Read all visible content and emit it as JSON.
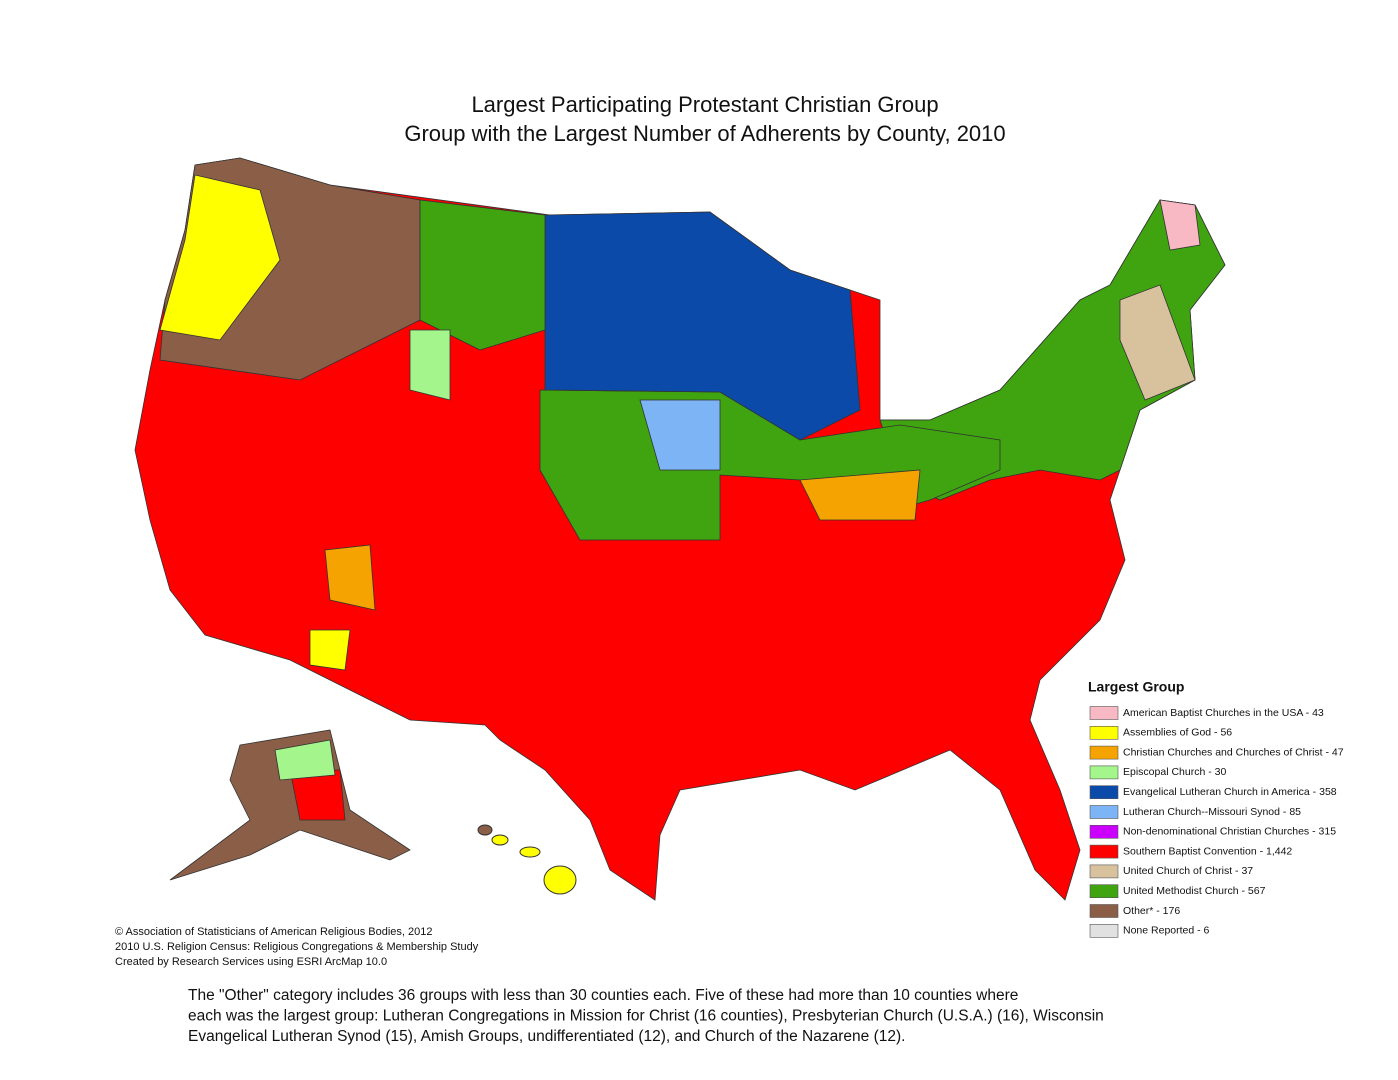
{
  "header": {
    "title": "Largest Participating Protestant Christian Group",
    "subtitle": "Group with the Largest Number of Adherents by County, 2010"
  },
  "legend": {
    "title": "Largest Group",
    "items": [
      {
        "label": "American Baptist Churches in the USA - 43",
        "color": "#f9b9c4"
      },
      {
        "label": "Assemblies of God - 56",
        "color": "#ffff00"
      },
      {
        "label": "Christian Churches and Churches of Christ - 47",
        "color": "#f5a300"
      },
      {
        "label": "Episcopal Church - 30",
        "color": "#a4f58c"
      },
      {
        "label": "Evangelical Lutheran Church in America - 358",
        "color": "#0b4aa8"
      },
      {
        "label": "Lutheran Church--Missouri Synod - 85",
        "color": "#7db4f5"
      },
      {
        "label": "Non-denominational Christian Churches - 315",
        "color": "#cc00ff"
      },
      {
        "label": "Southern Baptist Convention - 1,442",
        "color": "#ff0000"
      },
      {
        "label": "United Church of Christ - 37",
        "color": "#d8c29d"
      },
      {
        "label": "United Methodist Church - 567",
        "color": "#3fa40f"
      },
      {
        "label": "Other* - 176",
        "color": "#8b5e47"
      },
      {
        "label": "None Reported - 6",
        "color": "#e1e1e1"
      }
    ]
  },
  "credits": {
    "lines": [
      "© Association of Statisticians of American Religious Bodies, 2012",
      "2010 U.S. Religion Census: Religious Congregations & Membership Study",
      "Created by Research Services using ESRI ArcMap 10.0"
    ]
  },
  "note": {
    "lines": [
      "The \"Other\" category includes 36 groups with less than 30 counties each. Five of these had more than 10 counties where",
      "each was the largest group: Lutheran Congregations in Mission for Christ (16 counties), Presbyterian Church (U.S.A.) (16), Wisconsin",
      "Evangelical Lutheran Synod (15), Amish Groups, undifferentiated (12), and Church of the Nazarene (12)."
    ]
  }
}
